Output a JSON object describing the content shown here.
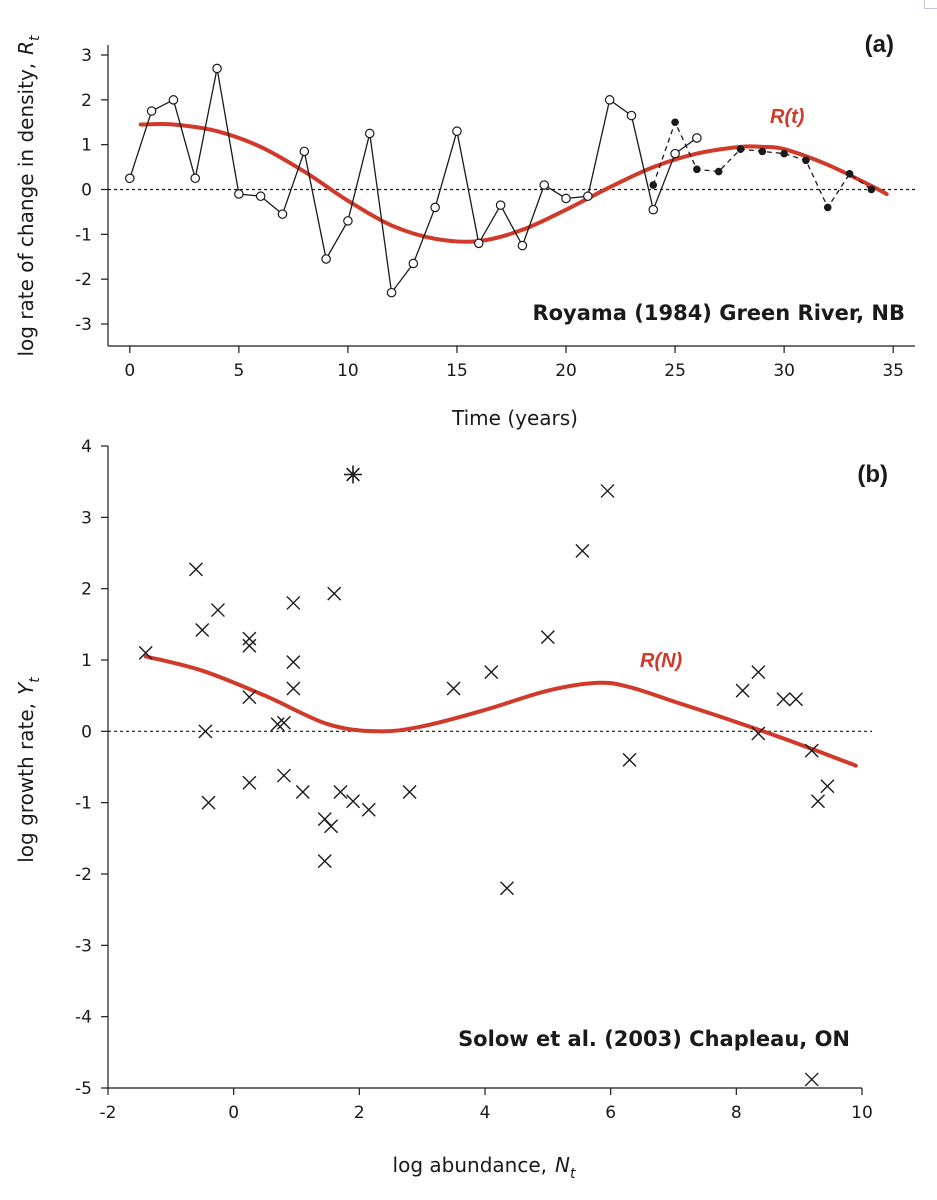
{
  "chart_data": [
    {
      "type": "line",
      "panel_label": "(a)",
      "annotation": "Royama (1984) Green River, NB",
      "xlabel": "Time (years)",
      "ylabel_main": "log rate of change in density,",
      "ylabel_symbol": "R",
      "ylabel_sub": "t",
      "xlim": [
        -1,
        36
      ],
      "ylim": [
        -3.5,
        3.2
      ],
      "x_ticks": [
        0,
        5,
        10,
        15,
        20,
        25,
        30,
        35
      ],
      "y_ticks": [
        -3,
        -2,
        -1,
        0,
        1,
        2,
        3
      ],
      "x_tick_labels": [
        "0",
        "5",
        "10",
        "15",
        "20",
        "25",
        "30",
        "35"
      ],
      "y_tick_labels": [
        "-3",
        "-2",
        "-1",
        "0",
        "1",
        "2",
        "3"
      ],
      "reference_line": 0,
      "series": [
        {
          "style": "open-circles-solid-line",
          "x": [
            0,
            1,
            2,
            3,
            4,
            5,
            6,
            7,
            8,
            9,
            10,
            11,
            12,
            13,
            14,
            15,
            16,
            17,
            18,
            19,
            20,
            21,
            22,
            23,
            24,
            25,
            26
          ],
          "y": [
            0.25,
            1.75,
            2.0,
            0.25,
            2.7,
            -0.1,
            -0.15,
            -0.55,
            0.85,
            -1.55,
            -0.7,
            1.25,
            -2.3,
            -1.65,
            -0.4,
            1.3,
            -1.2,
            -0.35,
            -1.25,
            0.1,
            -0.2,
            -0.15,
            2.0,
            1.65,
            -0.45,
            0.8,
            1.15
          ]
        },
        {
          "style": "filled-circles-dashed-line",
          "x": [
            24,
            25,
            26,
            27,
            28,
            29,
            30,
            31,
            32,
            33,
            34
          ],
          "y": [
            0.1,
            1.5,
            0.45,
            0.4,
            0.9,
            0.85,
            0.8,
            0.65,
            -0.4,
            0.35,
            0.0
          ]
        },
        {
          "name": "R(t)",
          "style": "smooth-red-curve",
          "x": [
            0.5,
            2,
            4,
            6,
            8,
            10,
            12,
            14,
            16,
            18,
            20,
            22,
            24,
            26,
            28,
            29,
            30,
            32,
            34,
            34.7
          ],
          "y": [
            1.45,
            1.45,
            1.3,
            0.95,
            0.4,
            -0.25,
            -0.8,
            -1.1,
            -1.15,
            -0.9,
            -0.45,
            0.05,
            0.5,
            0.8,
            0.95,
            0.95,
            0.9,
            0.55,
            0.08,
            -0.1
          ]
        }
      ]
    },
    {
      "type": "scatter",
      "panel_label": "(b)",
      "annotation": "Solow et al. (2003) Chapleau, ON",
      "xlabel_main": "log abundance,",
      "xlabel_symbol": "N",
      "xlabel_sub": "t",
      "ylabel_main": "log growth rate,",
      "ylabel_symbol": "Y",
      "ylabel_sub": "t",
      "xlim": [
        -2,
        10
      ],
      "ylim": [
        -5,
        4
      ],
      "x_ticks": [
        -2,
        0,
        2,
        4,
        6,
        8,
        10
      ],
      "y_ticks": [
        -5,
        -4,
        -3,
        -2,
        -1,
        0,
        1,
        2,
        3,
        4
      ],
      "x_tick_labels": [
        "-2",
        "0",
        "2",
        "4",
        "6",
        "8",
        "10"
      ],
      "y_tick_labels": [
        "-5",
        "-4",
        "-3",
        "-2",
        "-1",
        "0",
        "1",
        "2",
        "3",
        "4"
      ],
      "reference_line": 0,
      "series": [
        {
          "style": "x-markers",
          "x": [
            -1.4,
            -0.6,
            -0.5,
            -0.45,
            -0.4,
            -0.25,
            0.25,
            0.25,
            0.25,
            0.25,
            0.7,
            0.8,
            0.8,
            0.95,
            0.95,
            0.95,
            1.1,
            1.45,
            1.45,
            1.55,
            1.6,
            1.7,
            1.9,
            2.15,
            2.8,
            3.5,
            4.1,
            4.35,
            5.0,
            5.55,
            5.95,
            6.3,
            8.1,
            8.35,
            8.35,
            8.75,
            8.95,
            9.2,
            9.3,
            9.45,
            9.2
          ],
          "y": [
            1.1,
            2.27,
            1.42,
            0.0,
            -1.0,
            1.7,
            1.3,
            1.2,
            0.48,
            -0.72,
            0.1,
            0.12,
            -0.62,
            1.8,
            0.97,
            0.6,
            -0.85,
            -1.23,
            -1.82,
            -1.33,
            1.93,
            -0.85,
            -0.98,
            -1.1,
            -0.85,
            0.6,
            0.83,
            -2.2,
            1.32,
            2.53,
            3.37,
            -0.4,
            0.57,
            0.83,
            -0.03,
            0.45,
            0.45,
            -0.27,
            -0.98,
            -0.77,
            -4.88
          ]
        },
        {
          "style": "asterisk-marker",
          "x": [
            1.9
          ],
          "y": [
            3.6
          ]
        },
        {
          "name": "R(N)",
          "style": "smooth-red-curve",
          "x": [
            -1.4,
            -0.5,
            0.5,
            1.5,
            2.3,
            3.0,
            4.0,
            5.0,
            5.8,
            6.3,
            7.0,
            8.0,
            9.0,
            9.9
          ],
          "y": [
            1.05,
            0.85,
            0.5,
            0.1,
            0.0,
            0.07,
            0.3,
            0.57,
            0.68,
            0.62,
            0.42,
            0.13,
            -0.18,
            -0.48
          ]
        }
      ]
    }
  ],
  "colors": {
    "curve": "#d13a2a",
    "ink": "#1a1a1a",
    "background": "#ffffff"
  }
}
